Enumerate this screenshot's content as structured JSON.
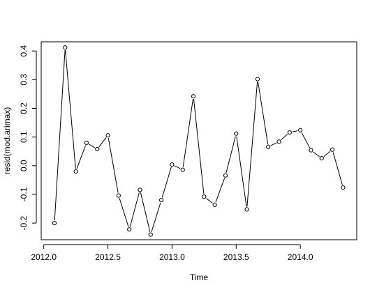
{
  "chart_data": {
    "type": "line",
    "title": "",
    "xlabel": "Time",
    "ylabel": "resid(mod.arimax)",
    "xlim": [
      2011.98,
      2014.44
    ],
    "ylim": [
      -0.258,
      0.432
    ],
    "x_ticks": [
      2012.0,
      2012.5,
      2013.0,
      2013.5,
      2014.0
    ],
    "x_tick_labels": [
      "2012.0",
      "2012.5",
      "2013.0",
      "2013.5",
      "2014.0"
    ],
    "y_ticks": [
      -0.2,
      -0.1,
      0.0,
      0.1,
      0.2,
      0.3,
      0.4
    ],
    "y_tick_labels": [
      "-0.2",
      "-0.1",
      "0.0",
      "0.1",
      "0.2",
      "0.3",
      "0.4"
    ],
    "grid": false,
    "markers": "open-circle",
    "color": "#000000",
    "x": [
      2012.0833,
      2012.1667,
      2012.25,
      2012.3333,
      2012.4167,
      2012.5,
      2012.5833,
      2012.6667,
      2012.75,
      2012.8333,
      2012.9167,
      2013.0,
      2013.0833,
      2013.1667,
      2013.25,
      2013.3333,
      2013.4167,
      2013.5,
      2013.5833,
      2013.6667,
      2013.75,
      2013.8333,
      2013.9167,
      2014.0,
      2014.0833,
      2014.1667,
      2014.25,
      2014.3333
    ],
    "y": [
      -0.2,
      0.412,
      -0.02,
      0.08,
      0.058,
      0.106,
      -0.104,
      -0.222,
      -0.084,
      -0.24,
      -0.12,
      0.004,
      -0.014,
      0.242,
      -0.108,
      -0.136,
      -0.034,
      0.112,
      -0.152,
      0.302,
      0.066,
      0.084,
      0.116,
      0.124,
      0.054,
      0.026,
      0.056,
      -0.076
    ]
  }
}
